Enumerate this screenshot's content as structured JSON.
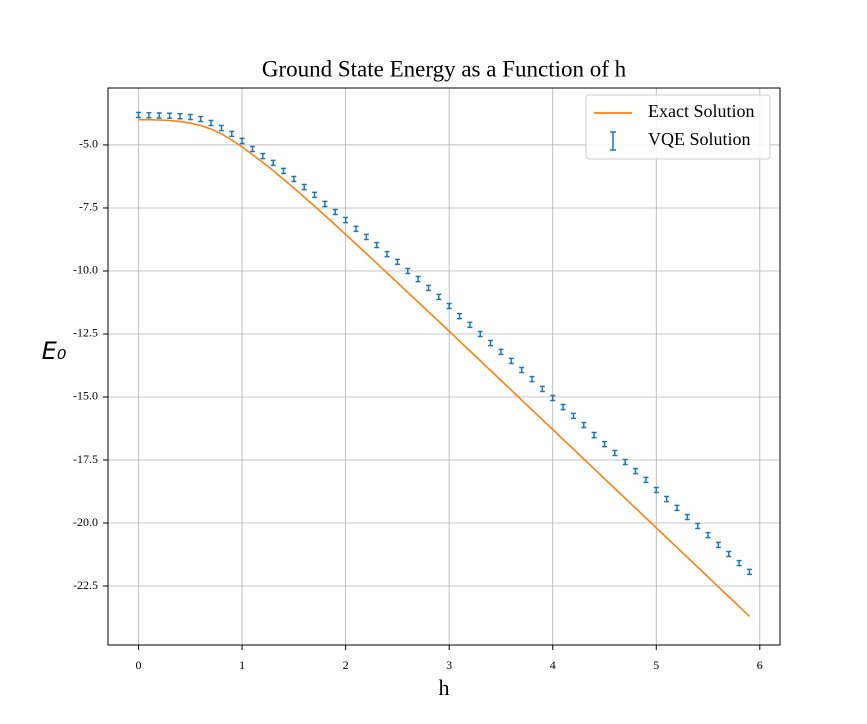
{
  "chart_data": {
    "type": "line",
    "title": "Ground State Energy as a Function of h",
    "xlabel": "h",
    "ylabel": "E₀",
    "x": [
      0,
      0.1,
      0.2,
      0.3,
      0.4,
      0.5,
      0.6,
      0.7,
      0.8,
      0.9,
      1.0,
      1.1,
      1.2,
      1.3,
      1.4,
      1.5,
      1.6,
      1.7,
      1.8,
      1.9,
      2.0,
      2.1,
      2.2,
      2.3,
      2.4,
      2.5,
      2.6,
      2.7,
      2.8,
      2.9,
      3.0,
      3.1,
      3.2,
      3.3,
      3.4,
      3.5,
      3.6,
      3.7,
      3.8,
      3.9,
      4.0,
      4.1,
      4.2,
      4.3,
      4.4,
      4.5,
      4.6,
      4.7,
      4.8,
      4.9,
      5.0,
      5.1,
      5.2,
      5.3,
      5.4,
      5.5,
      5.6,
      5.7,
      5.8,
      5.9
    ],
    "series": [
      {
        "name": "Exact Solution",
        "type": "line",
        "color": "#ff7f0e",
        "values": [
          -4.0,
          -4.0,
          -4.01,
          -4.03,
          -4.07,
          -4.13,
          -4.23,
          -4.37,
          -4.56,
          -4.8,
          -5.08,
          -5.38,
          -5.69,
          -6.02,
          -6.36,
          -6.71,
          -7.07,
          -7.43,
          -7.8,
          -8.17,
          -8.55,
          -8.93,
          -9.31,
          -9.69,
          -10.08,
          -10.46,
          -10.85,
          -11.23,
          -11.62,
          -12.0,
          -12.39,
          -12.78,
          -13.17,
          -13.56,
          -13.95,
          -14.34,
          -14.73,
          -15.12,
          -15.51,
          -15.9,
          -16.29,
          -16.68,
          -17.07,
          -17.46,
          -17.85,
          -18.24,
          -18.63,
          -19.02,
          -19.41,
          -19.8,
          -20.19,
          -20.58,
          -20.97,
          -21.36,
          -21.75,
          -22.14,
          -22.53,
          -22.92,
          -23.31,
          -23.7
        ]
      },
      {
        "name": "VQE Solution",
        "type": "errorbar",
        "color": "#1f77b4",
        "error": 0.1,
        "values": [
          -3.81,
          -3.82,
          -3.83,
          -3.84,
          -3.86,
          -3.89,
          -3.97,
          -4.13,
          -4.33,
          -4.56,
          -4.84,
          -5.16,
          -5.44,
          -5.71,
          -6.03,
          -6.35,
          -6.67,
          -6.98,
          -7.34,
          -7.66,
          -7.98,
          -8.33,
          -8.65,
          -8.97,
          -9.33,
          -9.64,
          -10.0,
          -10.32,
          -10.67,
          -11.03,
          -11.39,
          -11.79,
          -12.14,
          -12.5,
          -12.86,
          -13.21,
          -13.57,
          -13.93,
          -14.29,
          -14.68,
          -15.04,
          -15.4,
          -15.75,
          -16.11,
          -16.51,
          -16.87,
          -17.22,
          -17.58,
          -17.94,
          -18.29,
          -18.69,
          -19.05,
          -19.4,
          -19.76,
          -20.12,
          -20.48,
          -20.87,
          -21.23,
          -21.59,
          -21.94
        ]
      }
    ],
    "xlim": [
      -0.295,
      6.195
    ],
    "xticks": [
      0,
      1,
      2,
      3,
      4,
      5,
      6
    ],
    "ylim": [
      -24.84,
      -2.74
    ],
    "yticks": [
      {
        "value": -5,
        "label": "-5.0"
      },
      -7.5,
      {
        "value": -10,
        "label": "-10.0"
      },
      -12.5,
      {
        "value": -15,
        "label": "-15.0"
      },
      -17.5,
      {
        "value": -20,
        "label": "-20.0"
      },
      -22.5
    ],
    "grid": true,
    "legend": "upper right"
  }
}
